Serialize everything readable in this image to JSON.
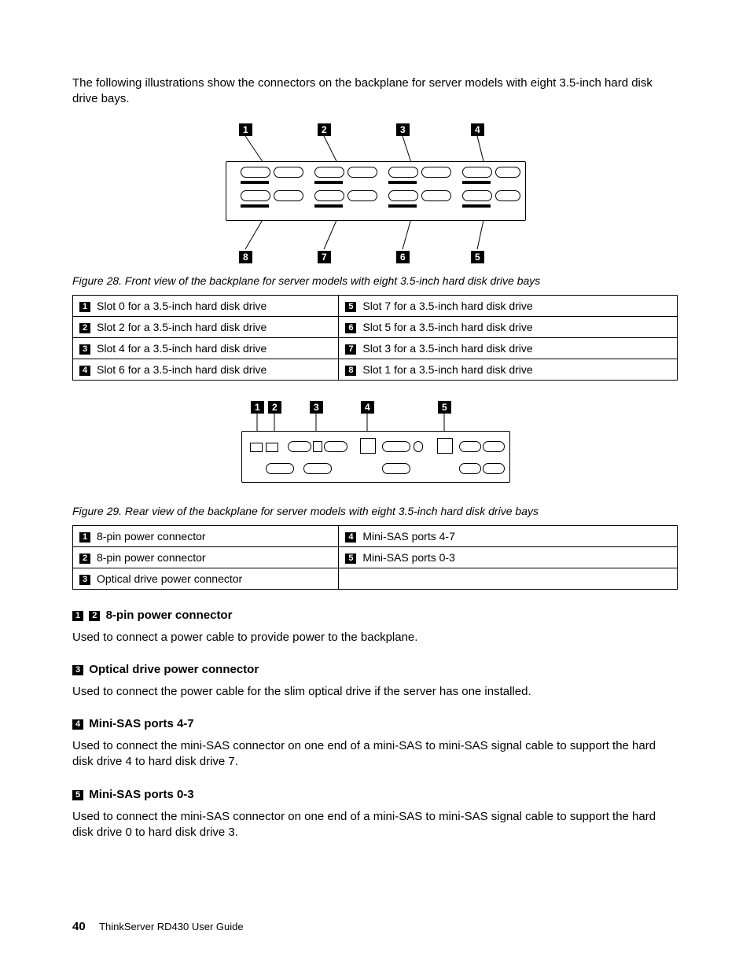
{
  "intro": "The following illustrations show the connectors on the backplane for server models with eight 3.5-inch hard disk drive bays.",
  "fig28": {
    "caption": "Figure 28.  Front view of the backplane for server models with eight 3.5-inch hard disk drive bays",
    "top_labels": [
      "1",
      "2",
      "3",
      "4"
    ],
    "bottom_labels": [
      "8",
      "7",
      "6",
      "5"
    ],
    "legend": [
      [
        "1",
        "Slot 0 for a 3.5-inch hard disk drive",
        "5",
        "Slot 7 for a 3.5-inch hard disk drive"
      ],
      [
        "2",
        "Slot 2 for a 3.5-inch hard disk drive",
        "6",
        "Slot 5 for a 3.5-inch hard disk drive"
      ],
      [
        "3",
        "Slot 4 for a 3.5-inch hard disk drive",
        "7",
        "Slot 3 for a 3.5-inch hard disk drive"
      ],
      [
        "4",
        "Slot 6 for a 3.5-inch hard disk drive",
        "8",
        "Slot 1 for a 3.5-inch hard disk drive"
      ]
    ]
  },
  "fig29": {
    "caption": "Figure 29.  Rear view of the backplane for server models with eight 3.5-inch hard disk drive bays",
    "top_labels": [
      "1",
      "2",
      "3",
      "4",
      "5"
    ],
    "legend": [
      [
        "1",
        "8-pin power connector",
        "4",
        "Mini-SAS ports 4-7"
      ],
      [
        "2",
        "8-pin power connector",
        "5",
        "Mini-SAS ports 0-3"
      ],
      [
        "3",
        "Optical drive power connector",
        "",
        ""
      ]
    ]
  },
  "sections": [
    {
      "nums": [
        "1",
        "2"
      ],
      "title": "8-pin power connector",
      "body": "Used to connect a power cable to provide power to the backplane."
    },
    {
      "nums": [
        "3"
      ],
      "title": "Optical drive power connector",
      "body": "Used to connect the power cable for the slim optical drive if the server has one installed."
    },
    {
      "nums": [
        "4"
      ],
      "title": "Mini-SAS ports 4-7",
      "body": "Used to connect the mini-SAS connector on one end of a mini-SAS to mini-SAS signal cable to support the hard disk drive 4 to hard disk drive 7."
    },
    {
      "nums": [
        "5"
      ],
      "title": "Mini-SAS ports 0-3",
      "body": "Used to connect the mini-SAS connector on one end of a mini-SAS to mini-SAS signal cable to support the hard disk drive 0 to hard disk drive 3."
    }
  ],
  "footer": {
    "page": "40",
    "title": "ThinkServer RD430 User Guide"
  }
}
